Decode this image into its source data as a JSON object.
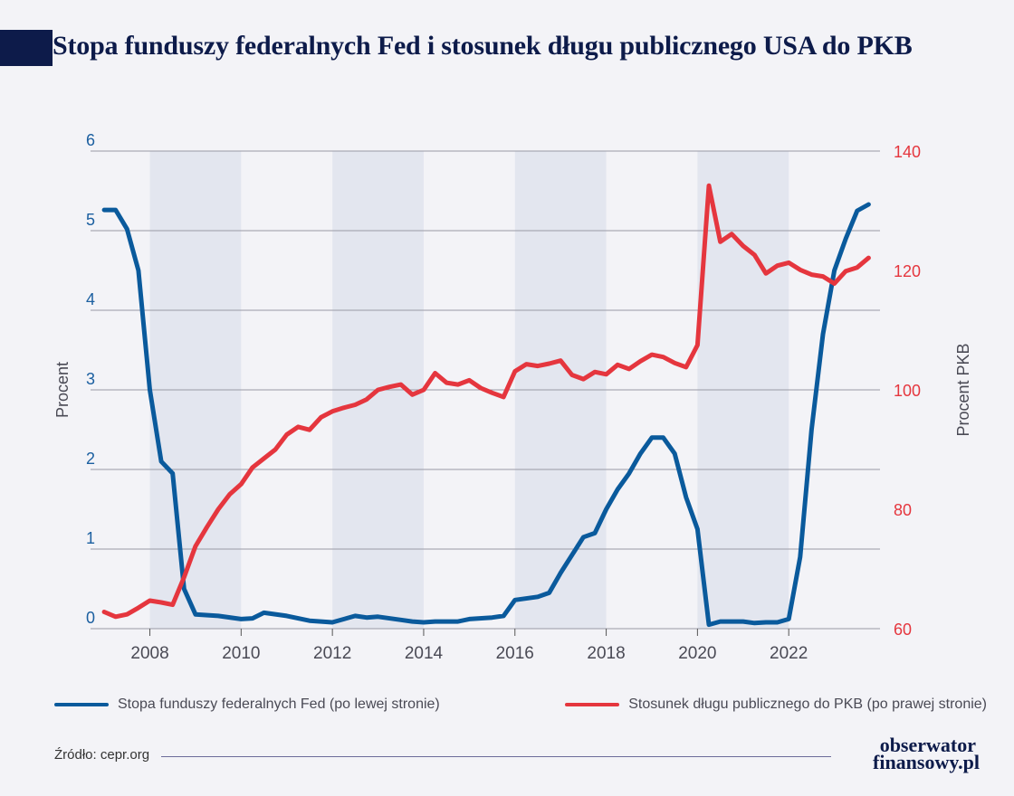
{
  "title": "Stopa funduszy federalnych Fed i stosunek długu publicznego USA do PKB",
  "source": "Źródło: cepr.org",
  "logo": {
    "line1": "obserwator",
    "line2": "finansowy.pl"
  },
  "colors": {
    "fed": "#0a5a9c",
    "debt": "#e5363e",
    "shade": "#e3e6ef",
    "axis_left": "#1b5fa0",
    "axis_right": "#e5363e"
  },
  "chart_data": {
    "type": "line",
    "left_axis": {
      "label": "Procent",
      "ylim": [
        0,
        6
      ],
      "ticks": [
        "0",
        "1",
        "2",
        "3",
        "4",
        "5",
        "6"
      ]
    },
    "right_axis": {
      "label": "Procent PKB",
      "ylim": [
        60,
        140
      ],
      "ticks": [
        "60",
        "80",
        "100",
        "120",
        "140"
      ]
    },
    "x_axis": {
      "xlim": [
        2006.7,
        2024.0
      ],
      "ticks": [
        "2008",
        "2010",
        "2012",
        "2014",
        "2016",
        "2018",
        "2020",
        "2022"
      ]
    },
    "shaded_periods": [
      [
        2008,
        2010
      ],
      [
        2012,
        2014
      ],
      [
        2016,
        2018
      ],
      [
        2020,
        2022
      ]
    ],
    "grid": true,
    "legend_position": "bottom",
    "series": [
      {
        "name": "Stopa funduszy federalnych Fed (po lewej stronie)",
        "axis": "left",
        "points": [
          [
            2007.0,
            5.26
          ],
          [
            2007.25,
            5.26
          ],
          [
            2007.5,
            5.02
          ],
          [
            2007.75,
            4.5
          ],
          [
            2008.0,
            3.0
          ],
          [
            2008.25,
            2.1
          ],
          [
            2008.5,
            1.95
          ],
          [
            2008.75,
            0.5
          ],
          [
            2009.0,
            0.18
          ],
          [
            2009.5,
            0.16
          ],
          [
            2010.0,
            0.12
          ],
          [
            2010.25,
            0.13
          ],
          [
            2010.5,
            0.2
          ],
          [
            2011.0,
            0.16
          ],
          [
            2011.5,
            0.1
          ],
          [
            2012.0,
            0.08
          ],
          [
            2012.5,
            0.16
          ],
          [
            2012.75,
            0.14
          ],
          [
            2013.0,
            0.15
          ],
          [
            2013.5,
            0.11
          ],
          [
            2013.75,
            0.09
          ],
          [
            2014.0,
            0.08
          ],
          [
            2014.25,
            0.09
          ],
          [
            2014.75,
            0.09
          ],
          [
            2015.0,
            0.12
          ],
          [
            2015.5,
            0.14
          ],
          [
            2015.75,
            0.16
          ],
          [
            2016.0,
            0.36
          ],
          [
            2016.5,
            0.4
          ],
          [
            2016.75,
            0.45
          ],
          [
            2017.0,
            0.7
          ],
          [
            2017.5,
            1.15
          ],
          [
            2017.75,
            1.2
          ],
          [
            2018.0,
            1.5
          ],
          [
            2018.25,
            1.75
          ],
          [
            2018.5,
            1.95
          ],
          [
            2018.75,
            2.2
          ],
          [
            2019.0,
            2.4
          ],
          [
            2019.25,
            2.4
          ],
          [
            2019.5,
            2.2
          ],
          [
            2019.75,
            1.65
          ],
          [
            2020.0,
            1.25
          ],
          [
            2020.25,
            0.05
          ],
          [
            2020.5,
            0.09
          ],
          [
            2021.0,
            0.09
          ],
          [
            2021.25,
            0.07
          ],
          [
            2021.5,
            0.08
          ],
          [
            2021.75,
            0.08
          ],
          [
            2022.0,
            0.12
          ],
          [
            2022.25,
            0.9
          ],
          [
            2022.5,
            2.5
          ],
          [
            2022.75,
            3.7
          ],
          [
            2023.0,
            4.5
          ],
          [
            2023.25,
            4.9
          ],
          [
            2023.5,
            5.25
          ],
          [
            2023.75,
            5.33
          ]
        ]
      },
      {
        "name": "Stosunek długu publicznego do PKB (po prawej stronie)",
        "axis": "right",
        "points": [
          [
            2007.0,
            62.8
          ],
          [
            2007.25,
            62.0
          ],
          [
            2007.5,
            62.4
          ],
          [
            2007.75,
            63.5
          ],
          [
            2008.0,
            64.7
          ],
          [
            2008.25,
            64.4
          ],
          [
            2008.5,
            64.0
          ],
          [
            2008.75,
            68.6
          ],
          [
            2009.0,
            73.8
          ],
          [
            2009.25,
            77.0
          ],
          [
            2009.5,
            80.0
          ],
          [
            2009.75,
            82.5
          ],
          [
            2010.0,
            84.2
          ],
          [
            2010.25,
            87.0
          ],
          [
            2010.5,
            88.5
          ],
          [
            2010.75,
            90.0
          ],
          [
            2011.0,
            92.5
          ],
          [
            2011.25,
            93.8
          ],
          [
            2011.5,
            93.3
          ],
          [
            2011.75,
            95.4
          ],
          [
            2012.0,
            96.4
          ],
          [
            2012.25,
            97.0
          ],
          [
            2012.5,
            97.5
          ],
          [
            2012.75,
            98.4
          ],
          [
            2013.0,
            100.0
          ],
          [
            2013.25,
            100.5
          ],
          [
            2013.5,
            100.9
          ],
          [
            2013.75,
            99.2
          ],
          [
            2014.0,
            100.0
          ],
          [
            2014.25,
            102.8
          ],
          [
            2014.5,
            101.2
          ],
          [
            2014.75,
            100.9
          ],
          [
            2015.0,
            101.6
          ],
          [
            2015.25,
            100.3
          ],
          [
            2015.5,
            99.5
          ],
          [
            2015.75,
            98.8
          ],
          [
            2016.0,
            103.1
          ],
          [
            2016.25,
            104.3
          ],
          [
            2016.5,
            104.0
          ],
          [
            2016.75,
            104.4
          ],
          [
            2017.0,
            104.9
          ],
          [
            2017.25,
            102.5
          ],
          [
            2017.5,
            101.8
          ],
          [
            2017.75,
            103.0
          ],
          [
            2018.0,
            102.6
          ],
          [
            2018.25,
            104.2
          ],
          [
            2018.5,
            103.5
          ],
          [
            2018.75,
            104.8
          ],
          [
            2019.0,
            105.9
          ],
          [
            2019.25,
            105.5
          ],
          [
            2019.5,
            104.5
          ],
          [
            2019.75,
            103.8
          ],
          [
            2020.0,
            107.5
          ],
          [
            2020.25,
            134.2
          ],
          [
            2020.5,
            124.8
          ],
          [
            2020.75,
            126.1
          ],
          [
            2021.0,
            124.1
          ],
          [
            2021.25,
            122.6
          ],
          [
            2021.5,
            119.5
          ],
          [
            2021.75,
            120.8
          ],
          [
            2022.0,
            121.3
          ],
          [
            2022.25,
            120.1
          ],
          [
            2022.5,
            119.3
          ],
          [
            2022.75,
            119.0
          ],
          [
            2023.0,
            117.8
          ],
          [
            2023.25,
            119.9
          ],
          [
            2023.5,
            120.5
          ],
          [
            2023.75,
            122.1
          ]
        ]
      }
    ]
  }
}
